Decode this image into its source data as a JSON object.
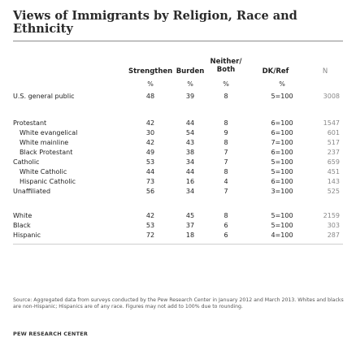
{
  "title": "Views of Immigrants by Religion, Race and Ethnicity",
  "headers": {
    "strengthen": "Strengthen",
    "burden": "Burden",
    "neither_line1": "Neither/",
    "neither_line2": "Both",
    "dkref": "DK/Ref",
    "n": "N",
    "percent_sign": "%"
  },
  "rows": [
    {
      "label": "U.S. general public",
      "strengthen": "48",
      "burden": "39",
      "neither": "8",
      "dkref": "5=100",
      "n": "3008"
    },
    {
      "label": "Protestant",
      "strengthen": "42",
      "burden": "44",
      "neither": "8",
      "dkref": "6=100",
      "n": "1547"
    },
    {
      "label": "White evangelical",
      "strengthen": "30",
      "burden": "54",
      "neither": "9",
      "dkref": "6=100",
      "n": "601"
    },
    {
      "label": "White mainline",
      "strengthen": "42",
      "burden": "43",
      "neither": "8",
      "dkref": "7=100",
      "n": "517"
    },
    {
      "label": "Black Protestant",
      "strengthen": "49",
      "burden": "38",
      "neither": "7",
      "dkref": "6=100",
      "n": "237"
    },
    {
      "label": "Catholic",
      "strengthen": "53",
      "burden": "34",
      "neither": "7",
      "dkref": "5=100",
      "n": "659"
    },
    {
      "label": "White Catholic",
      "strengthen": "44",
      "burden": "44",
      "neither": "8",
      "dkref": "5=100",
      "n": "451"
    },
    {
      "label": "Hispanic Catholic",
      "strengthen": "73",
      "burden": "16",
      "neither": "4",
      "dkref": "6=100",
      "n": "143"
    },
    {
      "label": "Unaffiliated",
      "strengthen": "56",
      "burden": "34",
      "neither": "7",
      "dkref": "3=100",
      "n": "525"
    },
    {
      "label": "White",
      "strengthen": "42",
      "burden": "45",
      "neither": "8",
      "dkref": "5=100",
      "n": "2159"
    },
    {
      "label": "Black",
      "strengthen": "53",
      "burden": "37",
      "neither": "6",
      "dkref": "5=100",
      "n": "303"
    },
    {
      "label": "Hispanic",
      "strengthen": "72",
      "burden": "18",
      "neither": "6",
      "dkref": "4=100",
      "n": "287"
    }
  ],
  "source": "Source: Aggregated data from surveys conducted by the Pew Research Center in January 2012 and March 2013. Whites and blacks are non-Hispanic; Hispanics are of any race. Figures may not add to 100% due to rounding.",
  "brand": "PEW RESEARCH CENTER"
}
